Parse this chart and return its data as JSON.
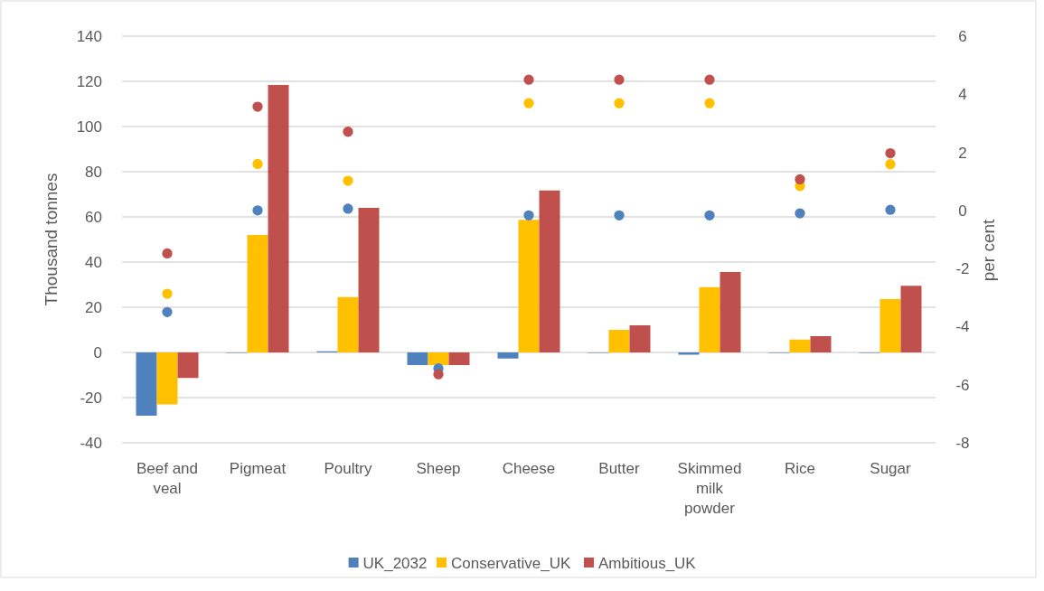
{
  "chart_data": {
    "type": "bar",
    "ylabel": "Thousand tonnes",
    "y2label": "per cent",
    "categories": [
      "Beef and veal",
      "Pigmeat",
      "Poultry",
      "Sheep",
      "Cheese",
      "Butter",
      "Skimmed milk powder",
      "Rice",
      "Sugar"
    ],
    "ylim": [
      -40,
      140
    ],
    "yticks": [
      -40,
      -20,
      0,
      20,
      40,
      60,
      80,
      100,
      120,
      140
    ],
    "y2lim": [
      -8,
      6
    ],
    "y2ticks": [
      -8,
      -6,
      -4,
      -2,
      0,
      2,
      4,
      6
    ],
    "grid": "y",
    "legend": "bottom",
    "series": [
      {
        "name": "UK_2032",
        "color": "#4f81bd",
        "values": [
          -28,
          0,
          0.5,
          -5.6,
          -2.7,
          0,
          -1,
          0,
          0
        ]
      },
      {
        "name": "Conservative_UK",
        "color": "#ffc000",
        "values": [
          -23,
          52,
          24.5,
          -5.6,
          58.7,
          10,
          28.9,
          5.7,
          23.6
        ]
      },
      {
        "name": "Ambitious_UK",
        "color": "#c0504d",
        "values": [
          -11.3,
          118.4,
          64,
          -5.6,
          71.7,
          12,
          35.6,
          7.2,
          29.5
        ]
      },
      {
        "type": "scatter",
        "axis": "y2",
        "marker": "circle",
        "color": "#4f81bd",
        "values": [
          -3.5,
          0,
          0.06,
          -5.44,
          -0.17,
          -0.17,
          -0.17,
          -0.1,
          0.02
        ]
      },
      {
        "type": "scatter",
        "axis": "y2",
        "marker": "circle",
        "color": "#ffc000",
        "values": [
          -2.87,
          1.6,
          1.02,
          null,
          3.69,
          3.69,
          3.69,
          0.84,
          1.59
        ]
      },
      {
        "type": "scatter",
        "axis": "y2",
        "marker": "circle",
        "color": "#c0504d",
        "values": [
          -1.48,
          3.57,
          2.71,
          -5.64,
          4.5,
          4.5,
          4.5,
          1.07,
          1.97
        ]
      }
    ]
  }
}
